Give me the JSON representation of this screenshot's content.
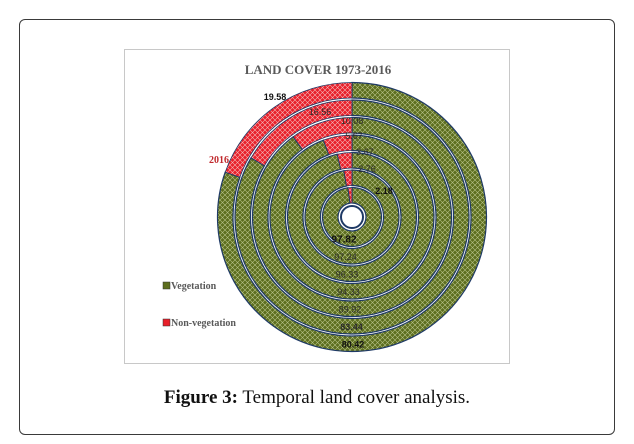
{
  "figure": {
    "label": "Figure 3:",
    "text": "Temporal land cover analysis."
  },
  "chart_data": {
    "type": "donut-rings",
    "title": "LAND COVER 1973-2016",
    "legend": {
      "placement": "left",
      "entries": [
        {
          "name": "Vegetation",
          "color": "#5d6e1e"
        },
        {
          "name": "Non-vegetation",
          "color": "#e8202a"
        }
      ]
    },
    "outer_ring_label": "2016",
    "series": [
      {
        "name": "Vegetation",
        "values": [
          97.82,
          97.24,
          96.33,
          94.33,
          89.92,
          83.44,
          80.42
        ]
      },
      {
        "name": "Non-vegetation",
        "values": [
          2.18,
          2.76,
          3.67,
          5.67,
          10.08,
          16.56,
          19.58
        ]
      }
    ],
    "vegetation_labels": [
      "97.82",
      "97.24",
      "96.33",
      "94.33",
      "89.92",
      "83.44",
      "80.42"
    ],
    "nonveg_labels": [
      "2.18",
      "2.76",
      "3.67",
      "5.67",
      "10.08",
      "16.56",
      "19.58"
    ],
    "colors": {
      "vegetation": "#5d6e1e",
      "nonveg": "#e8202a",
      "ring_edge": "#1f3a66",
      "outer_label": "#c0282c"
    }
  }
}
